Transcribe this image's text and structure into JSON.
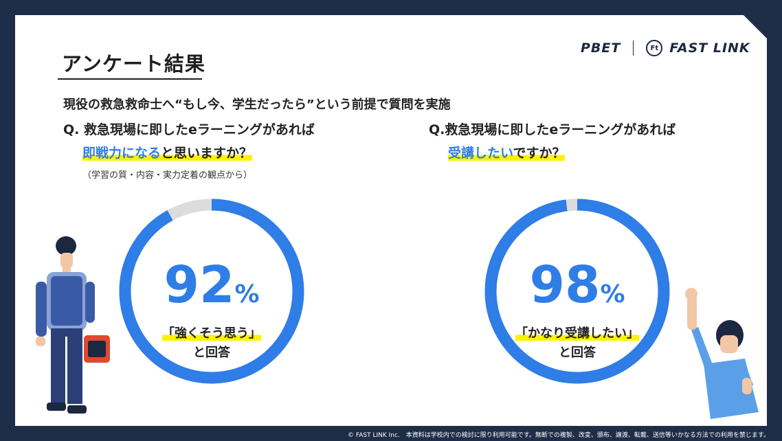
{
  "header": {
    "title": "アンケート結果",
    "brand_pbet": "PBET",
    "brand_icon": "Ft",
    "brand_fastlink": "FAST LINK"
  },
  "subtitle": "現役の救急救命士へ“もし今、学生だったら”という前提で質問を実施",
  "questions": [
    {
      "line1": "Q. 救急現場に即したeラーニングがあれば",
      "line2_highlight": "即戦力になる",
      "line2_rest": "と思いますか？",
      "note": "（学習の質・内容・実力定着の観点から）",
      "percent": "92",
      "percent_sign": "%",
      "answer_line1": "「強くそう思う」",
      "answer_line2": "と回答"
    },
    {
      "line1": "Q.救急現場に即したeラーニングがあれば",
      "line2_highlight": "受講したい",
      "line2_rest": "ですか？",
      "percent": "98",
      "percent_sign": "%",
      "answer_line1": "「かなり受講したい」",
      "answer_line2": "と回答"
    }
  ],
  "chart_data": [
    {
      "type": "pie",
      "labels": [
        "強くそう思う",
        "その他"
      ],
      "values": [
        92,
        8
      ],
      "colors": [
        "#2f7de6",
        "#dcdcdc"
      ]
    },
    {
      "type": "pie",
      "labels": [
        "かなり受講したい",
        "その他"
      ],
      "values": [
        98,
        2
      ],
      "colors": [
        "#2f7de6",
        "#dcdcdc"
      ]
    }
  ],
  "footer": "© FAST LINK Inc.　本資料は学校内での検討に限り利用可能です。無断での複製、改変、頒布、譲渡、転載、送信等いかなる方法での利用を禁じます。",
  "colors": {
    "accent": "#2f7de6",
    "highlight": "#fff200",
    "navy": "#1e2d48",
    "track": "#dcdcdc"
  }
}
